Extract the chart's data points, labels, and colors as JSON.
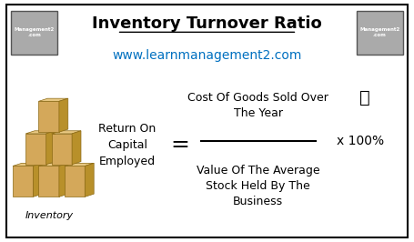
{
  "title": "Inventory Turnover Ratio",
  "subtitle": "www.learnmanagement2.com",
  "title_color": "#000000",
  "subtitle_color": "#0070C0",
  "bg_color": "#FFFFFF",
  "border_color": "#000000",
  "left_label": "Return On\nCapital\nEmployed",
  "equals_sign": "=",
  "numerator": "Cost Of Goods Sold Over\nThe Year",
  "denominator": "Value Of The Average\nStock Held By The\nBusiness",
  "multiplier": "x 100%",
  "inventory_label": "Inventory",
  "text_color": "#000000",
  "fraction_line_color": "#000000",
  "box_face": "#D4A85A",
  "box_top": "#E8C882",
  "box_right": "#B8902A",
  "box_edge": "#8B6914",
  "figsize": [
    4.55,
    2.66
  ],
  "dpi": 100
}
